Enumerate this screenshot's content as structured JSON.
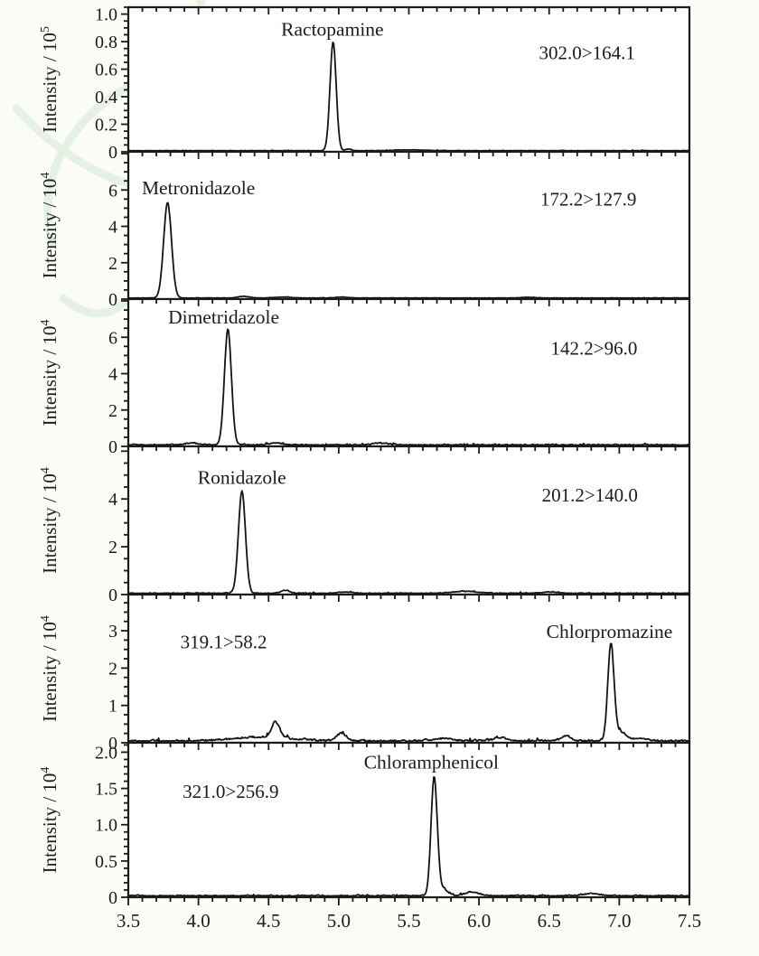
{
  "figure": {
    "background": "#fbfbf8",
    "panel_background": "#ffffff",
    "axis_color": "#1a1a1a",
    "trace_color": "#141414",
    "text_color": "#1c1c1c",
    "watermark_color": "#e0efdd",
    "x_axis": {
      "min": 3.5,
      "max": 7.5,
      "major_step": 0.5,
      "minor_step": 0.1,
      "tick_labels": [
        "3.5",
        "4.0",
        "4.5",
        "5.0",
        "5.5",
        "6.0",
        "6.5",
        "7.0",
        "7.5"
      ]
    }
  },
  "chart_data": [
    {
      "type": "line",
      "compound": "Ractopamine",
      "transition": "302.0>164.1",
      "ylabel_base": "Intensity / 10",
      "ylabel_exponent": "5",
      "ylim": [
        0,
        1.05
      ],
      "y_major_ticks": [
        0,
        0.2,
        0.4,
        0.6,
        0.8,
        1.0
      ],
      "y_tick_labels": [
        "0",
        "0.2",
        "0.4",
        "0.6",
        "0.8",
        "1.0"
      ],
      "y_minor_step": 0.05,
      "peaks": [
        {
          "rt": 4.96,
          "height": 0.79,
          "sigma": 0.022
        }
      ],
      "minor_features": [
        {
          "rt": 5.07,
          "height": 0.012,
          "sigma": 0.02
        },
        {
          "rt": 5.5,
          "height": 0.006,
          "sigma": 0.1
        }
      ],
      "noise_amplitude": 0.004,
      "compound_label_pos": {
        "x": 4.955,
        "y": 0.89
      },
      "transition_label_pos": {
        "x": 6.77,
        "y": 0.72
      }
    },
    {
      "type": "line",
      "compound": "Metronidazole",
      "transition": "172.2>127.9",
      "ylabel_base": "Intensity / 10",
      "ylabel_exponent": "4",
      "ylim": [
        0,
        8.1
      ],
      "y_major_ticks": [
        0,
        2,
        4,
        6
      ],
      "y_tick_labels": [
        "0",
        "2",
        "4",
        "6"
      ],
      "y_minor_step": 0.5,
      "peaks": [
        {
          "rt": 3.78,
          "height": 5.25,
          "sigma": 0.028
        }
      ],
      "minor_features": [
        {
          "rt": 4.32,
          "height": 0.09,
          "sigma": 0.04
        },
        {
          "rt": 4.6,
          "height": 0.05,
          "sigma": 0.06
        },
        {
          "rt": 5.02,
          "height": 0.05,
          "sigma": 0.04
        },
        {
          "rt": 6.35,
          "height": 0.04,
          "sigma": 0.05
        }
      ],
      "noise_amplitude": 0.025,
      "compound_label_pos": {
        "x": 4.0,
        "y": 6.1
      },
      "transition_label_pos": {
        "x": 6.78,
        "y": 5.5
      }
    },
    {
      "type": "line",
      "compound": "Dimetridazole",
      "transition": "142.2>96.0",
      "ylabel_base": "Intensity / 10",
      "ylabel_exponent": "4",
      "ylim": [
        0,
        8.1
      ],
      "y_major_ticks": [
        0,
        2,
        4,
        6
      ],
      "y_tick_labels": [
        "0",
        "2",
        "4",
        "6"
      ],
      "y_minor_step": 0.5,
      "peaks": [
        {
          "rt": 4.21,
          "height": 6.35,
          "sigma": 0.025
        }
      ],
      "minor_features": [
        {
          "rt": 3.95,
          "height": 0.1,
          "sigma": 0.05
        },
        {
          "rt": 4.55,
          "height": 0.12,
          "sigma": 0.04
        },
        {
          "rt": 5.3,
          "height": 0.08,
          "sigma": 0.06
        }
      ],
      "noise_amplitude": 0.08,
      "compound_label_pos": {
        "x": 4.18,
        "y": 7.1
      },
      "transition_label_pos": {
        "x": 6.82,
        "y": 5.4
      }
    },
    {
      "type": "line",
      "compound": "Ronidazole",
      "transition": "201.2>140.0",
      "ylabel_base": "Intensity / 10",
      "ylabel_exponent": "4",
      "ylim": [
        0,
        6.2
      ],
      "y_major_ticks": [
        0,
        2,
        4
      ],
      "y_tick_labels": [
        "0",
        "2",
        "4"
      ],
      "y_minor_step": 0.5,
      "peaks": [
        {
          "rt": 4.31,
          "height": 4.28,
          "sigma": 0.025
        }
      ],
      "minor_features": [
        {
          "rt": 4.62,
          "height": 0.12,
          "sigma": 0.03
        },
        {
          "rt": 5.05,
          "height": 0.05,
          "sigma": 0.05
        },
        {
          "rt": 5.9,
          "height": 0.08,
          "sigma": 0.09
        },
        {
          "rt": 6.5,
          "height": 0.05,
          "sigma": 0.06
        }
      ],
      "noise_amplitude": 0.045,
      "compound_label_pos": {
        "x": 4.31,
        "y": 4.9
      },
      "transition_label_pos": {
        "x": 6.79,
        "y": 4.15
      }
    },
    {
      "type": "line",
      "compound": "Chlorpromazine",
      "transition": "319.1>58.2",
      "ylabel_base": "Intensity / 10",
      "ylabel_exponent": "4",
      "ylim": [
        0,
        3.97
      ],
      "y_major_ticks": [
        0,
        1,
        2,
        3
      ],
      "y_tick_labels": [
        "0",
        "1",
        "2",
        "3"
      ],
      "y_minor_step": 0.25,
      "peaks": [
        {
          "rt": 6.94,
          "height": 2.52,
          "sigma": 0.022
        }
      ],
      "minor_features": [
        {
          "rt": 7.0,
          "height": 0.25,
          "sigma": 0.045
        },
        {
          "rt": 4.45,
          "height": 0.1,
          "sigma": 0.2
        },
        {
          "rt": 4.55,
          "height": 0.42,
          "sigma": 0.028
        },
        {
          "rt": 5.02,
          "height": 0.2,
          "sigma": 0.035
        },
        {
          "rt": 5.75,
          "height": 0.07,
          "sigma": 0.06
        },
        {
          "rt": 6.15,
          "height": 0.08,
          "sigma": 0.05
        },
        {
          "rt": 6.62,
          "height": 0.14,
          "sigma": 0.035
        },
        {
          "rt": 7.15,
          "height": 0.07,
          "sigma": 0.05
        }
      ],
      "noise_amplitude": 0.07,
      "compound_label_pos": {
        "x": 6.93,
        "y": 2.98
      },
      "transition_label_pos": {
        "x": 4.18,
        "y": 2.7
      }
    },
    {
      "type": "line",
      "compound": "Chloramphenicol",
      "transition": "321.0>256.9",
      "ylabel_base": "Intensity / 10",
      "ylabel_exponent": "4",
      "ylim": [
        0,
        2.13
      ],
      "y_major_ticks": [
        0,
        0.5,
        1.0,
        1.5,
        2.0
      ],
      "y_tick_labels": [
        "0",
        "0.5",
        "1.0",
        "1.5",
        "2.0"
      ],
      "y_minor_step": 0.1,
      "peaks": [
        {
          "rt": 5.68,
          "height": 1.62,
          "sigma": 0.022
        }
      ],
      "minor_features": [
        {
          "rt": 5.74,
          "height": 0.1,
          "sigma": 0.035
        },
        {
          "rt": 5.95,
          "height": 0.05,
          "sigma": 0.05
        },
        {
          "rt": 6.8,
          "height": 0.03,
          "sigma": 0.06
        }
      ],
      "noise_amplitude": 0.022,
      "compound_label_pos": {
        "x": 5.66,
        "y": 1.86
      },
      "transition_label_pos": {
        "x": 4.23,
        "y": 1.46
      }
    }
  ]
}
